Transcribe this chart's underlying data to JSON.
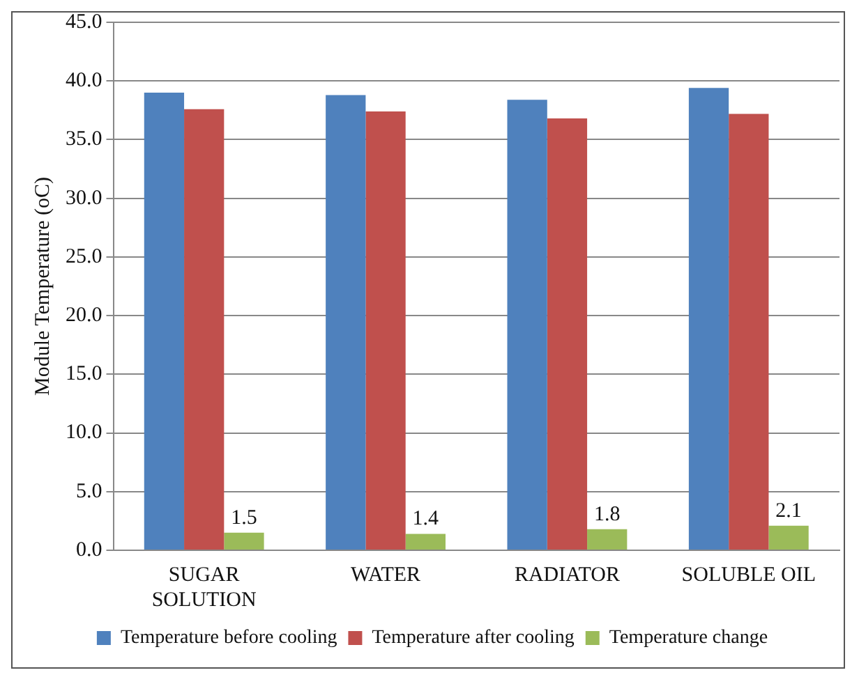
{
  "chart_data": {
    "type": "bar",
    "ylabel": "Module Temperature (oC)",
    "categories": [
      "SUGAR SOLUTION",
      "WATER",
      "RADIATOR",
      "SOLUBLE OIL"
    ],
    "series": [
      {
        "name": "Temperature before cooling",
        "color": "#4f81bd",
        "values": [
          39.0,
          38.8,
          38.4,
          39.4
        ]
      },
      {
        "name": "Temperature after cooling",
        "color": "#c0504d",
        "values": [
          37.6,
          37.4,
          36.8,
          37.2
        ]
      },
      {
        "name": "Temperature change",
        "color": "#9bbb59",
        "values": [
          1.5,
          1.4,
          1.8,
          2.1
        ],
        "value_labels": [
          "1.5",
          "1.4",
          "1.8",
          "2.1"
        ]
      }
    ],
    "ylim": [
      0,
      45
    ],
    "yticks": [
      {
        "value": 0,
        "label": "0.0"
      },
      {
        "value": 5,
        "label": "5.0"
      },
      {
        "value": 10,
        "label": "10.0"
      },
      {
        "value": 15,
        "label": "15.0"
      },
      {
        "value": 20,
        "label": "20.0"
      },
      {
        "value": 25,
        "label": "25.0"
      },
      {
        "value": 30,
        "label": "30.0"
      },
      {
        "value": 35,
        "label": "35.0"
      },
      {
        "value": 40,
        "label": "40.0"
      },
      {
        "value": 45,
        "label": "45.0"
      }
    ],
    "grid": "y",
    "legend": "bottom"
  }
}
